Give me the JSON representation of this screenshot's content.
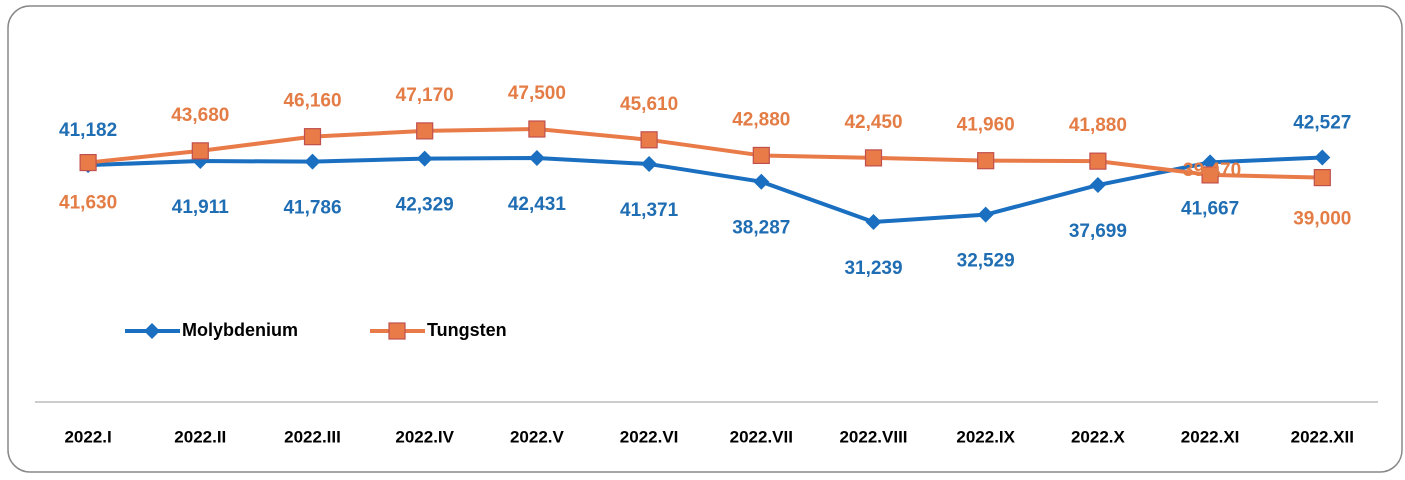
{
  "chart_data": {
    "type": "line",
    "categories": [
      "2022.I",
      "2022.II",
      "2022.III",
      "2022.IV",
      "2022.V",
      "2022.VI",
      "2022.VII",
      "2022.VIII",
      "2022.IX",
      "2022.X",
      "2022.XI",
      "2022.XII"
    ],
    "series": [
      {
        "name": "Molybdenium",
        "color": "#1a6fc0",
        "label_color": "#1f6db3",
        "values": [
          41182,
          41911,
          41786,
          42329,
          42431,
          41371,
          38287,
          31239,
          32529,
          37699,
          41667,
          42527
        ],
        "value_labels": [
          "41,182",
          "41,911",
          "41,786",
          "42,329",
          "42,431",
          "41,371",
          "38,287",
          "31,239",
          "32,529",
          "37,699",
          "41,667",
          "42,527"
        ]
      },
      {
        "name": "Tungsten",
        "color": "#e97b49",
        "label_color": "#e47c45",
        "values": [
          41630,
          43680,
          46160,
          47170,
          47500,
          45610,
          42880,
          42450,
          41960,
          41880,
          39470,
          39000
        ],
        "value_labels": [
          "41,630",
          "43,680",
          "46,160",
          "47,170",
          "47,500",
          "45,610",
          "42,880",
          "42,450",
          "41,960",
          "41,880",
          "39,470",
          "39,000"
        ]
      }
    ],
    "legend": "left"
  }
}
